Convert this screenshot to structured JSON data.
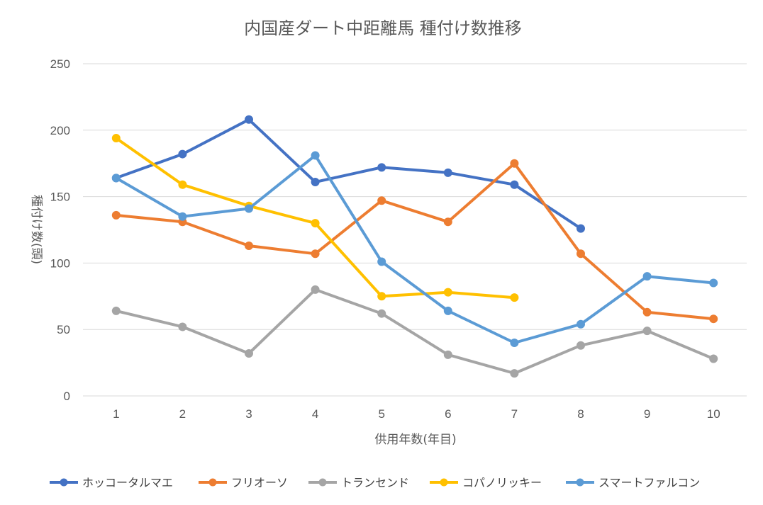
{
  "chart_data": {
    "type": "line",
    "title": "内国産ダート中距離馬 種付け数推移",
    "xlabel": "供用年数(年目)",
    "ylabel": "種付け数(頭)",
    "categories": [
      "1",
      "2",
      "3",
      "4",
      "5",
      "6",
      "7",
      "8",
      "9",
      "10"
    ],
    "ylim": [
      0,
      250
    ],
    "yticks": [
      0,
      50,
      100,
      150,
      200,
      250
    ],
    "grid": true,
    "legend_position": "bottom",
    "series": [
      {
        "name": "ホッコータルマエ",
        "color": "#4472C4",
        "values": [
          164,
          182,
          208,
          161,
          172,
          168,
          159,
          126,
          null,
          null
        ]
      },
      {
        "name": "フリオーソ",
        "color": "#ED7D31",
        "values": [
          136,
          131,
          113,
          107,
          147,
          131,
          175,
          107,
          63,
          58
        ]
      },
      {
        "name": "トランセンド",
        "color": "#A5A5A5",
        "values": [
          64,
          52,
          32,
          80,
          62,
          31,
          17,
          38,
          49,
          28
        ]
      },
      {
        "name": "コパノリッキー",
        "color": "#FFC000",
        "values": [
          194,
          159,
          143,
          130,
          75,
          78,
          74,
          null,
          null,
          null
        ]
      },
      {
        "name": "スマートファルコン",
        "color": "#5B9BD5",
        "values": [
          164,
          135,
          141,
          181,
          101,
          64,
          40,
          54,
          90,
          85
        ]
      }
    ]
  }
}
